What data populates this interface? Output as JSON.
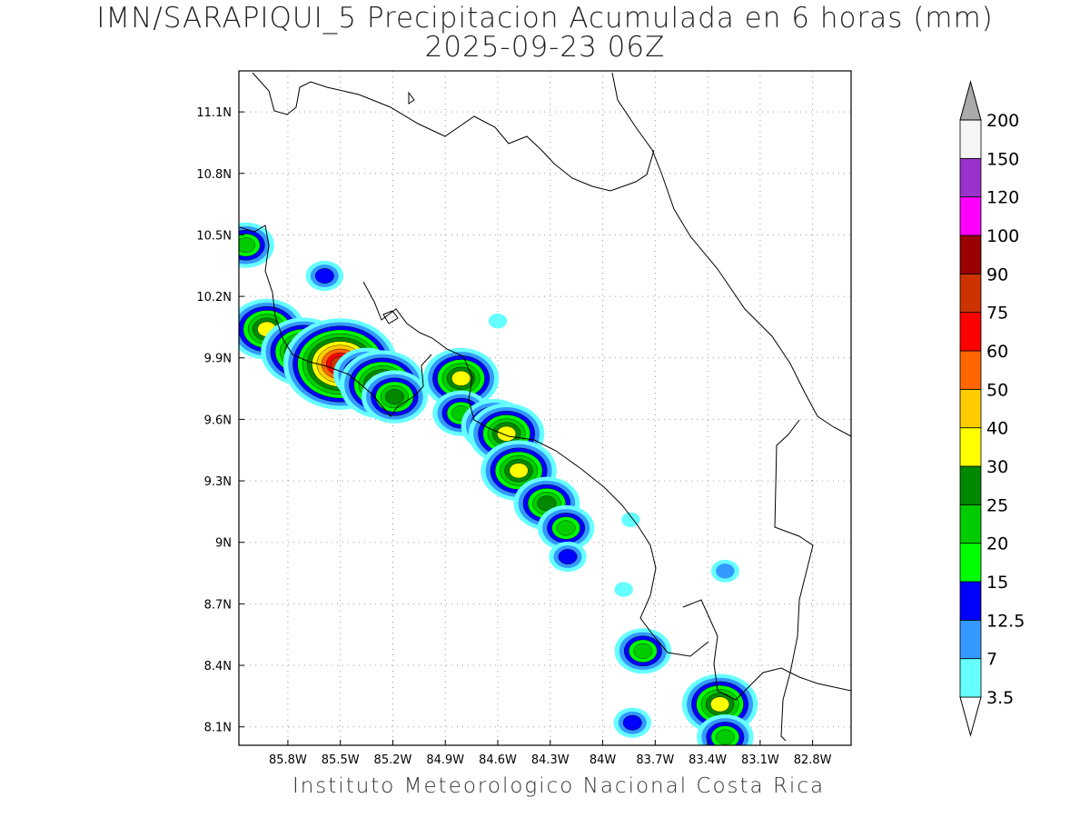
{
  "title": {
    "line1": "IMN/SARAPIQUI_5 Precipitacion Acumulada en 6 horas (mm)",
    "line2": "2025-09-23 06Z"
  },
  "footer": "Instituto Meteorologico Nacional Costa Rica",
  "map": {
    "lon_range": [
      -86.08,
      -82.58
    ],
    "lat_range": [
      8.01,
      11.3
    ],
    "lon_ticks": [
      {
        "v": -85.8,
        "label": "85.8W"
      },
      {
        "v": -85.5,
        "label": "85.5W"
      },
      {
        "v": -85.2,
        "label": "85.2W"
      },
      {
        "v": -84.9,
        "label": "84.9W"
      },
      {
        "v": -84.6,
        "label": "84.6W"
      },
      {
        "v": -84.3,
        "label": "84.3W"
      },
      {
        "v": -84.0,
        "label": "84W"
      },
      {
        "v": -83.7,
        "label": "83.7W"
      },
      {
        "v": -83.4,
        "label": "83.4W"
      },
      {
        "v": -83.1,
        "label": "83.1W"
      },
      {
        "v": -82.8,
        "label": "82.8W"
      }
    ],
    "lat_ticks": [
      {
        "v": 11.1,
        "label": "11.1N"
      },
      {
        "v": 10.8,
        "label": "10.8N"
      },
      {
        "v": 10.5,
        "label": "10.5N"
      },
      {
        "v": 10.2,
        "label": "10.2N"
      },
      {
        "v": 9.9,
        "label": "9.9N"
      },
      {
        "v": 9.6,
        "label": "9.6N"
      },
      {
        "v": 9.3,
        "label": "9.3N"
      },
      {
        "v": 9.0,
        "label": "9N"
      },
      {
        "v": 8.7,
        "label": "8.7N"
      },
      {
        "v": 8.4,
        "label": "8.4N"
      },
      {
        "v": 8.1,
        "label": "8.1N"
      }
    ],
    "grid": "dotted"
  },
  "colorbar": {
    "levels": [
      {
        "label": "3.5",
        "color": "#66ffff"
      },
      {
        "label": "7",
        "color": "#3399ff"
      },
      {
        "label": "12.5",
        "color": "#0000ff"
      },
      {
        "label": "15",
        "color": "#00ff00"
      },
      {
        "label": "20",
        "color": "#00cc00"
      },
      {
        "label": "25",
        "color": "#008800"
      },
      {
        "label": "30",
        "color": "#ffff00"
      },
      {
        "label": "40",
        "color": "#ffcc00"
      },
      {
        "label": "50",
        "color": "#ff6600"
      },
      {
        "label": "60",
        "color": "#ff0000"
      },
      {
        "label": "75",
        "color": "#cc3300"
      },
      {
        "label": "90",
        "color": "#990000"
      },
      {
        "label": "100",
        "color": "#ff00ff"
      },
      {
        "label": "120",
        "color": "#9933cc"
      },
      {
        "label": "150",
        "color": "#f5f5f5"
      },
      {
        "label": "200",
        "color": "#aaaaaa"
      }
    ]
  },
  "rain_cells": [
    {
      "lon": -86.04,
      "lat": 10.45,
      "peak": 4
    },
    {
      "lon": -85.59,
      "lat": 10.3,
      "peak": 2
    },
    {
      "lon": -85.92,
      "lat": 10.04,
      "peak": 6
    },
    {
      "lon": -85.71,
      "lat": 9.93,
      "peak": 7
    },
    {
      "lon": -85.5,
      "lat": 9.87,
      "peak": 10
    },
    {
      "lon": -85.35,
      "lat": 9.82,
      "peak": 5
    },
    {
      "lon": -85.26,
      "lat": 9.77,
      "peak": 7
    },
    {
      "lon": -85.19,
      "lat": 9.71,
      "peak": 5
    },
    {
      "lon": -84.81,
      "lat": 9.8,
      "peak": 6
    },
    {
      "lon": -84.81,
      "lat": 9.63,
      "peak": 4
    },
    {
      "lon": -84.62,
      "lat": 9.57,
      "peak": 5
    },
    {
      "lon": -84.55,
      "lat": 9.53,
      "peak": 6
    },
    {
      "lon": -84.48,
      "lat": 9.35,
      "peak": 6
    },
    {
      "lon": -84.32,
      "lat": 9.19,
      "peak": 5
    },
    {
      "lon": -84.21,
      "lat": 9.07,
      "peak": 4
    },
    {
      "lon": -84.2,
      "lat": 8.93,
      "peak": 2
    },
    {
      "lon": -83.77,
      "lat": 8.47,
      "peak": 4
    },
    {
      "lon": -83.33,
      "lat": 8.21,
      "peak": 6
    },
    {
      "lon": -83.3,
      "lat": 8.05,
      "peak": 4
    },
    {
      "lon": -83.83,
      "lat": 8.12,
      "peak": 2
    },
    {
      "lon": -84.6,
      "lat": 10.08,
      "peak": 0
    },
    {
      "lon": -83.84,
      "lat": 9.11,
      "peak": 0
    },
    {
      "lon": -83.3,
      "lat": 8.86,
      "peak": 1
    },
    {
      "lon": -83.88,
      "lat": 8.77,
      "peak": 0
    }
  ]
}
